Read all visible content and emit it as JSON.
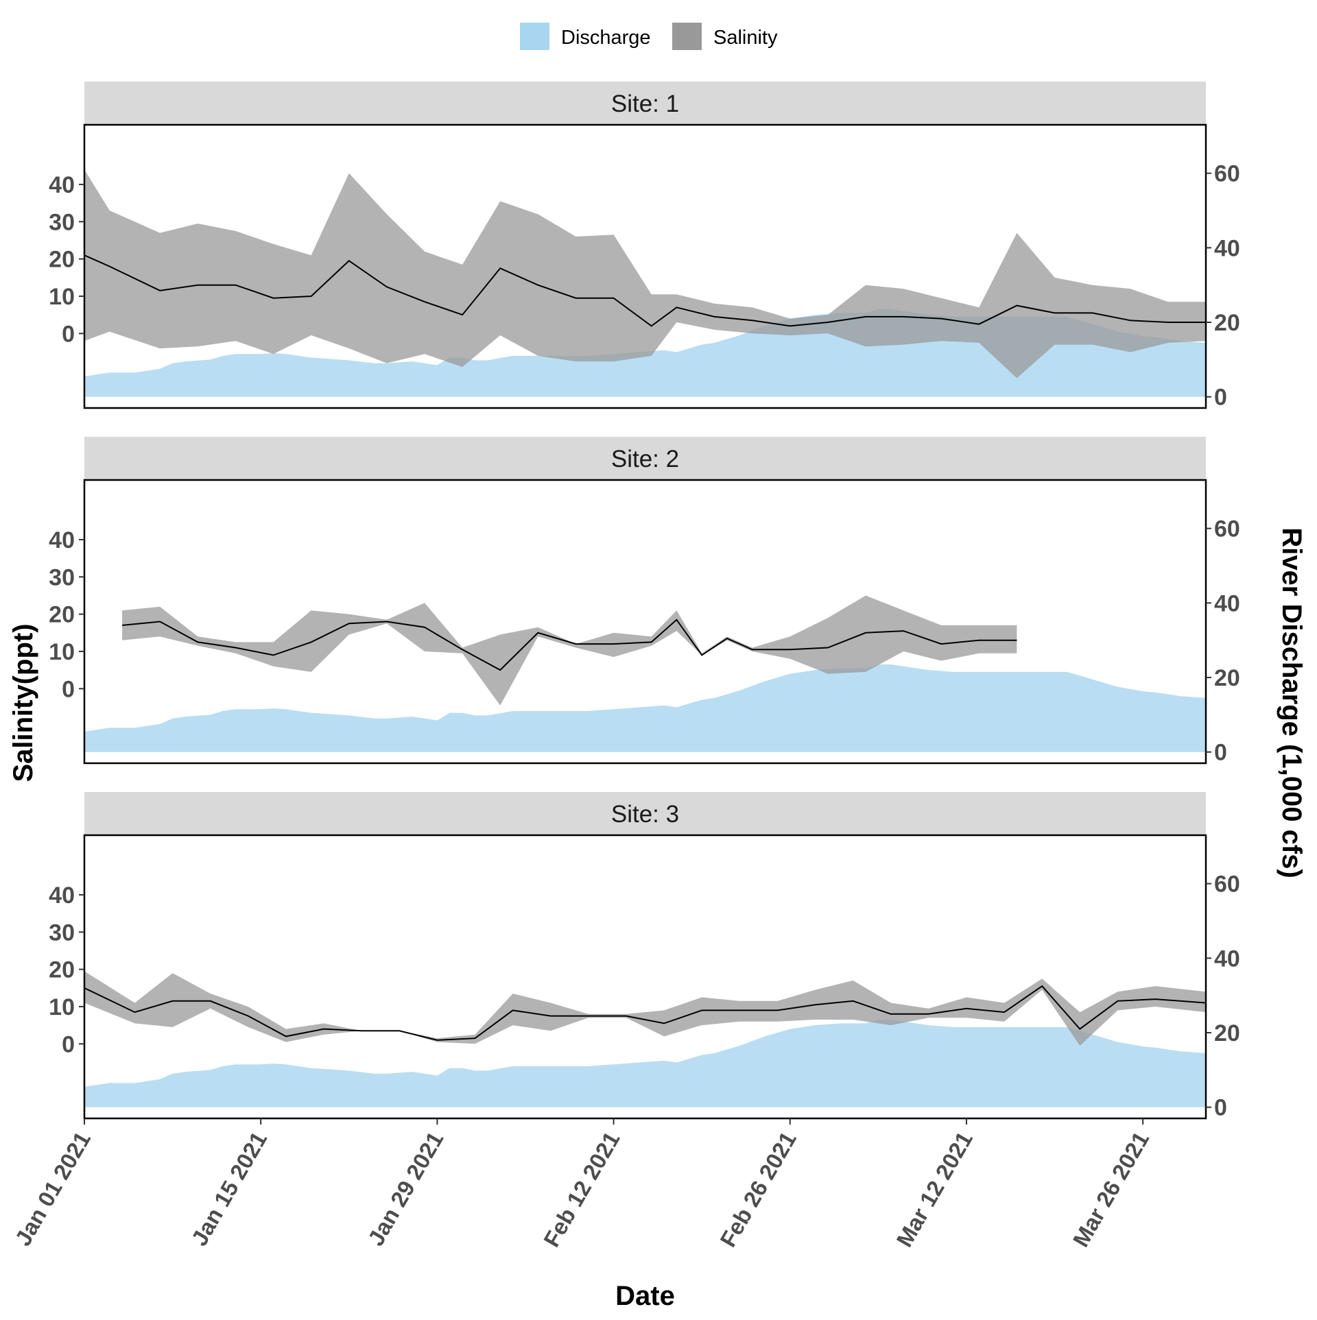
{
  "chart_data": {
    "type": "area",
    "xlabel": "Date",
    "ylabel": "Salinity(ppt)",
    "y2label": "River Discharge (1,000 cfs)",
    "legend": {
      "position": "top",
      "entries": [
        {
          "name": "Discharge",
          "color": "#a8d5f0"
        },
        {
          "name": "Salinity",
          "color": "#999999"
        }
      ]
    },
    "colors": {
      "discharge": "#a8d5f0",
      "salinity_band": "#999999",
      "salinity_line": "#000000",
      "strip_bg": "#d9d9d9"
    },
    "grid": false,
    "xlim": [
      "2021-01-01",
      "2021-03-31"
    ],
    "x_ticks": [
      {
        "date": "2021-01-01",
        "label": "Jan 01 2021"
      },
      {
        "date": "2021-01-15",
        "label": "Jan 15 2021"
      },
      {
        "date": "2021-01-29",
        "label": "Jan 29 2021"
      },
      {
        "date": "2021-02-12",
        "label": "Feb 12 2021"
      },
      {
        "date": "2021-02-26",
        "label": "Feb 26 2021"
      },
      {
        "date": "2021-03-12",
        "label": "Mar 12 2021"
      },
      {
        "date": "2021-03-26",
        "label": "Mar 26 2021"
      }
    ],
    "y_ticks_left": [
      "0",
      "10",
      "20",
      "30",
      "40"
    ],
    "y_ticks_right": [
      "0",
      "20",
      "40",
      "60"
    ],
    "ylim_salinity": [
      -20,
      56
    ],
    "ylim_discharge": [
      -3,
      73
    ],
    "discharge": {
      "name": "Discharge",
      "x": [
        "2021-01-01",
        "2021-01-03",
        "2021-01-05",
        "2021-01-07",
        "2021-01-08",
        "2021-01-09",
        "2021-01-11",
        "2021-01-12",
        "2021-01-13",
        "2021-01-15",
        "2021-01-16",
        "2021-01-17",
        "2021-01-19",
        "2021-01-20",
        "2021-01-22",
        "2021-01-24",
        "2021-01-25",
        "2021-01-27",
        "2021-01-28",
        "2021-01-29",
        "2021-01-30",
        "2021-01-31",
        "2021-02-01",
        "2021-02-02",
        "2021-02-04",
        "2021-02-05",
        "2021-02-06",
        "2021-02-08",
        "2021-02-10",
        "2021-02-12",
        "2021-02-14",
        "2021-02-16",
        "2021-02-17",
        "2021-02-19",
        "2021-02-20",
        "2021-02-22",
        "2021-02-24",
        "2021-02-26",
        "2021-02-28",
        "2021-03-02",
        "2021-03-04",
        "2021-03-05",
        "2021-03-06",
        "2021-03-08",
        "2021-03-09",
        "2021-03-11",
        "2021-03-13",
        "2021-03-15",
        "2021-03-17",
        "2021-03-18",
        "2021-03-20",
        "2021-03-22",
        "2021-03-24",
        "2021-03-26",
        "2021-03-27",
        "2021-03-29",
        "2021-03-31"
      ],
      "values": [
        5.5,
        6.5,
        6.5,
        7.5,
        9,
        9.5,
        10,
        11,
        11.5,
        11.5,
        11.7,
        11.5,
        10.5,
        10.3,
        9.8,
        9,
        9,
        9.5,
        9,
        8.5,
        10.5,
        10.5,
        9.8,
        9.8,
        11,
        11,
        11,
        11,
        11,
        11.5,
        12,
        12.5,
        12,
        14,
        14.5,
        16.5,
        19,
        21,
        22,
        22.5,
        22.5,
        23.5,
        23.5,
        22.5,
        22,
        21.5,
        21.5,
        21.5,
        21.5,
        21.5,
        21.5,
        19.5,
        17.5,
        16.3,
        16,
        15,
        14.5
      ]
    },
    "panels": [
      {
        "strip": "Site: 1",
        "salinity": {
          "name": "Salinity",
          "x": [
            "2021-01-01",
            "2021-01-03",
            "2021-01-07",
            "2021-01-10",
            "2021-01-13",
            "2021-01-16",
            "2021-01-19",
            "2021-01-22",
            "2021-01-25",
            "2021-01-28",
            "2021-01-31",
            "2021-02-03",
            "2021-02-06",
            "2021-02-09",
            "2021-02-12",
            "2021-02-15",
            "2021-02-17",
            "2021-02-20",
            "2021-02-23",
            "2021-02-26",
            "2021-03-01",
            "2021-03-04",
            "2021-03-07",
            "2021-03-10",
            "2021-03-13",
            "2021-03-16",
            "2021-03-19",
            "2021-03-22",
            "2021-03-25",
            "2021-03-28",
            "2021-03-31"
          ],
          "mean": [
            21,
            18,
            11.5,
            13,
            13,
            9.5,
            10,
            19.5,
            12.5,
            8.5,
            5,
            17.5,
            13,
            9.5,
            9.5,
            2,
            7,
            4.5,
            3.5,
            2,
            3,
            4.5,
            4.5,
            4,
            2.5,
            7.5,
            5.5,
            5.5,
            3.5,
            3,
            3
          ],
          "min": [
            -2,
            0.5,
            -4,
            -3.5,
            -2,
            -5.5,
            -0.5,
            -4,
            -8,
            -5.5,
            -9,
            -0.5,
            -6,
            -7.5,
            -7.5,
            -6,
            3,
            1,
            0,
            -0.5,
            0,
            -3.5,
            -3,
            -2,
            -2.5,
            -12,
            -3,
            -3,
            -5,
            -2.5,
            -2
          ],
          "max": [
            44,
            33,
            27,
            29.5,
            27.5,
            24,
            21,
            43,
            32,
            22,
            18.5,
            35.5,
            32,
            26,
            26.5,
            10.5,
            10.5,
            8,
            7,
            4,
            5,
            13,
            12,
            9.5,
            7,
            27,
            15,
            13,
            12,
            8.5,
            8.5
          ]
        }
      },
      {
        "strip": "Site: 2",
        "salinity": {
          "name": "Salinity",
          "x": [
            "2021-01-04",
            "2021-01-07",
            "2021-01-10",
            "2021-01-13",
            "2021-01-16",
            "2021-01-19",
            "2021-01-22",
            "2021-01-25",
            "2021-01-28",
            "2021-01-31",
            "2021-02-03",
            "2021-02-06",
            "2021-02-09",
            "2021-02-12",
            "2021-02-15",
            "2021-02-17",
            "2021-02-19",
            "2021-02-21",
            "2021-02-23",
            "2021-02-26",
            "2021-03-01",
            "2021-03-04",
            "2021-03-07",
            "2021-03-10",
            "2021-03-13",
            "2021-03-16"
          ],
          "mean": [
            17,
            18,
            12.5,
            11,
            9,
            12.5,
            17.5,
            18,
            16.5,
            10.5,
            5,
            15,
            12,
            12,
            12.5,
            18.5,
            9,
            13.5,
            10.5,
            10.5,
            11,
            15,
            15.5,
            12,
            13,
            13
          ],
          "min": [
            13,
            14,
            11.5,
            9.5,
            6,
            4.5,
            14.5,
            17.5,
            10,
            9.5,
            -4.5,
            14,
            11,
            8.5,
            11.5,
            15.5,
            9,
            13,
            10,
            8,
            4,
            4.5,
            10,
            7.5,
            9.5,
            9.5
          ],
          "max": [
            21,
            22,
            14,
            12.5,
            12.5,
            21,
            20,
            18.5,
            23,
            11,
            14.5,
            16.5,
            12,
            15,
            14,
            21,
            9.5,
            14,
            11,
            14,
            19,
            25,
            21,
            17,
            17,
            17
          ]
        }
      },
      {
        "strip": "Site: 3",
        "salinity": {
          "name": "Salinity",
          "x": [
            "2021-01-01",
            "2021-01-05",
            "2021-01-08",
            "2021-01-11",
            "2021-01-14",
            "2021-01-17",
            "2021-01-20",
            "2021-01-23",
            "2021-01-26",
            "2021-01-29",
            "2021-02-01",
            "2021-02-04",
            "2021-02-07",
            "2021-02-10",
            "2021-02-13",
            "2021-02-16",
            "2021-02-19",
            "2021-02-22",
            "2021-02-25",
            "2021-02-28",
            "2021-03-03",
            "2021-03-06",
            "2021-03-09",
            "2021-03-12",
            "2021-03-15",
            "2021-03-18",
            "2021-03-21",
            "2021-03-24",
            "2021-03-27",
            "2021-03-31"
          ],
          "mean": [
            15,
            8.5,
            11.5,
            11.5,
            7.5,
            2,
            4,
            3.5,
            3.5,
            1,
            1.5,
            9,
            7.5,
            7.5,
            7.5,
            5.5,
            9,
            9,
            9,
            10.5,
            11.5,
            8,
            8,
            9.5,
            8.5,
            15.5,
            4,
            11.5,
            12,
            11
          ],
          "min": [
            11,
            5.5,
            4.5,
            9.5,
            4.5,
            0.5,
            2.5,
            3.5,
            3.5,
            0.5,
            0,
            5,
            3.5,
            7,
            7,
            2,
            5,
            6,
            6,
            6.5,
            6.5,
            5,
            7,
            7,
            6,
            14.5,
            -0.5,
            9,
            10,
            8.5
          ],
          "max": [
            19.5,
            11,
            19,
            13.5,
            10,
            4,
            5.5,
            3.5,
            3.5,
            1.5,
            2.5,
            13.5,
            11,
            8,
            8,
            9,
            12.5,
            11.5,
            11.5,
            14.5,
            17,
            11,
            9.5,
            12.5,
            11,
            17.5,
            8.5,
            14,
            15.5,
            14
          ]
        }
      }
    ]
  }
}
